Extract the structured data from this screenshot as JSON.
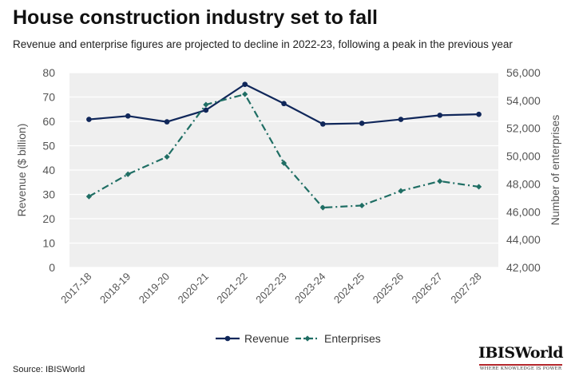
{
  "header": {
    "title": "House construction industry set to fall",
    "subtitle": "Revenue and enterprise figures are projected to decline in 2022-23, following a peak in the previous year"
  },
  "footer": {
    "source": "Source: IBISWorld",
    "logo_name": "IBISWorld",
    "logo_tagline": "WHERE KNOWLEDGE IS POWER"
  },
  "colors": {
    "revenue": "#10275a",
    "enterprises": "#1f6e64",
    "plot_bg": "#efefef",
    "grid": "#ffffff",
    "logo_accent": "#b3262b"
  },
  "chart_data": {
    "type": "line",
    "categories": [
      "2017-18",
      "2018-19",
      "2019-20",
      "2020-21",
      "2021-22",
      "2022-23",
      "2023-24",
      "2024-25",
      "2025-26",
      "2026-27",
      "2027-28"
    ],
    "series": [
      {
        "name": "Revenue",
        "axis": "left",
        "style": "solid",
        "marker": "circle",
        "values": [
          60.8,
          62.2,
          59.8,
          64.6,
          75.2,
          67.3,
          58.9,
          59.2,
          60.8,
          62.5,
          62.9
        ]
      },
      {
        "name": "Enterprises",
        "axis": "right",
        "style": "dash-dot",
        "marker": "diamond",
        "values": [
          47100,
          48700,
          49950,
          53700,
          54450,
          49500,
          46300,
          46450,
          47500,
          48200,
          47800
        ]
      }
    ],
    "ylabel_left": "Revenue ($ billion)",
    "ylabel_right": "Number of enterprises",
    "ylim_left": [
      0,
      80
    ],
    "yticks_left": [
      0,
      10,
      20,
      30,
      40,
      50,
      60,
      70,
      80
    ],
    "ylim_right": [
      42000,
      56000
    ],
    "yticks_right": [
      42000,
      44000,
      46000,
      48000,
      50000,
      52000,
      54000,
      56000
    ],
    "yticklabels_right": [
      "42,000",
      "44,000",
      "46,000",
      "48,000",
      "50,000",
      "52,000",
      "54,000",
      "56,000"
    ],
    "grid": true,
    "legend_position": "bottom"
  }
}
